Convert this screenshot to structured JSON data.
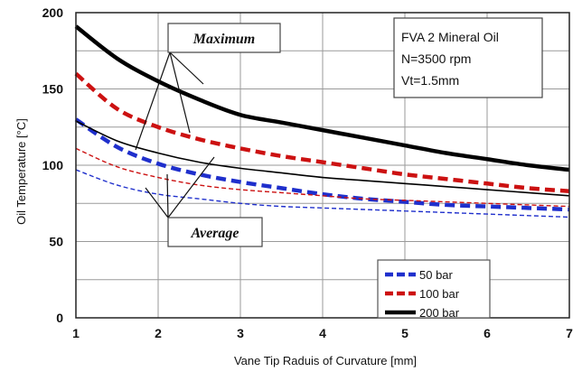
{
  "chart_data": {
    "type": "line",
    "xlabel": "Vane Tip Raduis of Curvature [mm]",
    "ylabel": "Oil Temperature  [°C]",
    "xlim": [
      1,
      7
    ],
    "ylim": [
      0,
      200
    ],
    "x_ticks": [
      "1",
      "2",
      "3",
      "4",
      "5",
      "6",
      "7"
    ],
    "y_ticks": [
      "0",
      "50",
      "100",
      "150",
      "200"
    ],
    "grid": "horizontal",
    "legend_placement": "bottom-right",
    "info_box": [
      "FVA 2 Mineral Oil",
      "N=3500 rpm",
      "Vt=1.5mm"
    ],
    "annotations": {
      "maximum": "Maximum",
      "average": "Average"
    },
    "x": [
      1,
      1.5,
      2,
      2.5,
      3,
      3.5,
      4,
      4.5,
      5,
      5.5,
      6,
      6.5,
      7
    ],
    "series": [
      {
        "name": "50 bar",
        "color": "#1f2fcc",
        "style": "dashed",
        "kind": "maximum",
        "values": [
          130,
          112,
          101,
          94,
          89,
          85,
          81,
          78,
          76,
          74,
          73,
          72,
          71
        ]
      },
      {
        "name": "50 bar",
        "color": "#1f2fcc",
        "style": "dashed-thin",
        "kind": "average",
        "values": [
          97,
          87,
          81,
          78,
          75,
          73,
          72,
          71,
          70,
          69,
          68,
          67,
          66
        ]
      },
      {
        "name": "100 bar",
        "color": "#cc1111",
        "style": "dashed",
        "kind": "maximum",
        "values": [
          160,
          137,
          125,
          117,
          111,
          106,
          102,
          98,
          94,
          91,
          88,
          85,
          83
        ]
      },
      {
        "name": "100 bar",
        "color": "#cc1111",
        "style": "dashed-thin",
        "kind": "average",
        "values": [
          111,
          99,
          92,
          87,
          84,
          82,
          80,
          78,
          77,
          76,
          75,
          74,
          73
        ]
      },
      {
        "name": "200 bar",
        "color": "#000000",
        "style": "solid",
        "kind": "maximum",
        "values": [
          191,
          170,
          155,
          143,
          133,
          128,
          123,
          118,
          113,
          108,
          104,
          100,
          97
        ]
      },
      {
        "name": "200 bar",
        "color": "#000000",
        "style": "solid-thin",
        "kind": "average",
        "values": [
          129,
          116,
          108,
          102,
          98,
          95,
          92,
          90,
          88,
          86,
          84,
          82,
          80
        ]
      }
    ],
    "legend": [
      {
        "name": "50 bar",
        "color": "#1f2fcc",
        "style": "dashed"
      },
      {
        "name": "100 bar",
        "color": "#cc1111",
        "style": "dashed"
      },
      {
        "name": "200 bar",
        "color": "#000000",
        "style": "solid"
      }
    ]
  }
}
